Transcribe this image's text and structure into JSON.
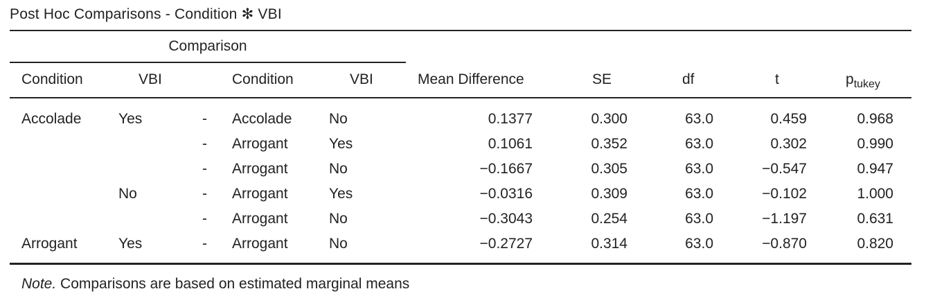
{
  "title": "Post Hoc Comparisons - Condition ✻ VBI",
  "group_header": "Comparison",
  "columns": {
    "cond1": "Condition",
    "vbi1": "VBI",
    "cond2": "Condition",
    "vbi2": "VBI",
    "mean_diff": "Mean Difference",
    "se": "SE",
    "df": "df",
    "t": "t",
    "p_main": "p",
    "p_sub": "tukey"
  },
  "rows": [
    {
      "cond1": "Accolade",
      "vbi1": "Yes",
      "dash": "-",
      "cond2": "Accolade",
      "vbi2": "No",
      "mean_diff": "0.1377",
      "se": "0.300",
      "df": "63.0",
      "t": "0.459",
      "p": "0.968"
    },
    {
      "cond1": "",
      "vbi1": "",
      "dash": "-",
      "cond2": "Arrogant",
      "vbi2": "Yes",
      "mean_diff": "0.1061",
      "se": "0.352",
      "df": "63.0",
      "t": "0.302",
      "p": "0.990"
    },
    {
      "cond1": "",
      "vbi1": "",
      "dash": "-",
      "cond2": "Arrogant",
      "vbi2": "No",
      "mean_diff": "−0.1667",
      "se": "0.305",
      "df": "63.0",
      "t": "−0.547",
      "p": "0.947"
    },
    {
      "cond1": "",
      "vbi1": "No",
      "dash": "-",
      "cond2": "Arrogant",
      "vbi2": "Yes",
      "mean_diff": "−0.0316",
      "se": "0.309",
      "df": "63.0",
      "t": "−0.102",
      "p": "1.000"
    },
    {
      "cond1": "",
      "vbi1": "",
      "dash": "-",
      "cond2": "Arrogant",
      "vbi2": "No",
      "mean_diff": "−0.3043",
      "se": "0.254",
      "df": "63.0",
      "t": "−1.197",
      "p": "0.631"
    },
    {
      "cond1": "Arrogant",
      "vbi1": "Yes",
      "dash": "-",
      "cond2": "Arrogant",
      "vbi2": "No",
      "mean_diff": "−0.2727",
      "se": "0.314",
      "df": "63.0",
      "t": "−0.870",
      "p": "0.820"
    }
  ],
  "note": {
    "label": "Note.",
    "text": " Comparisons are based on estimated marginal means"
  }
}
